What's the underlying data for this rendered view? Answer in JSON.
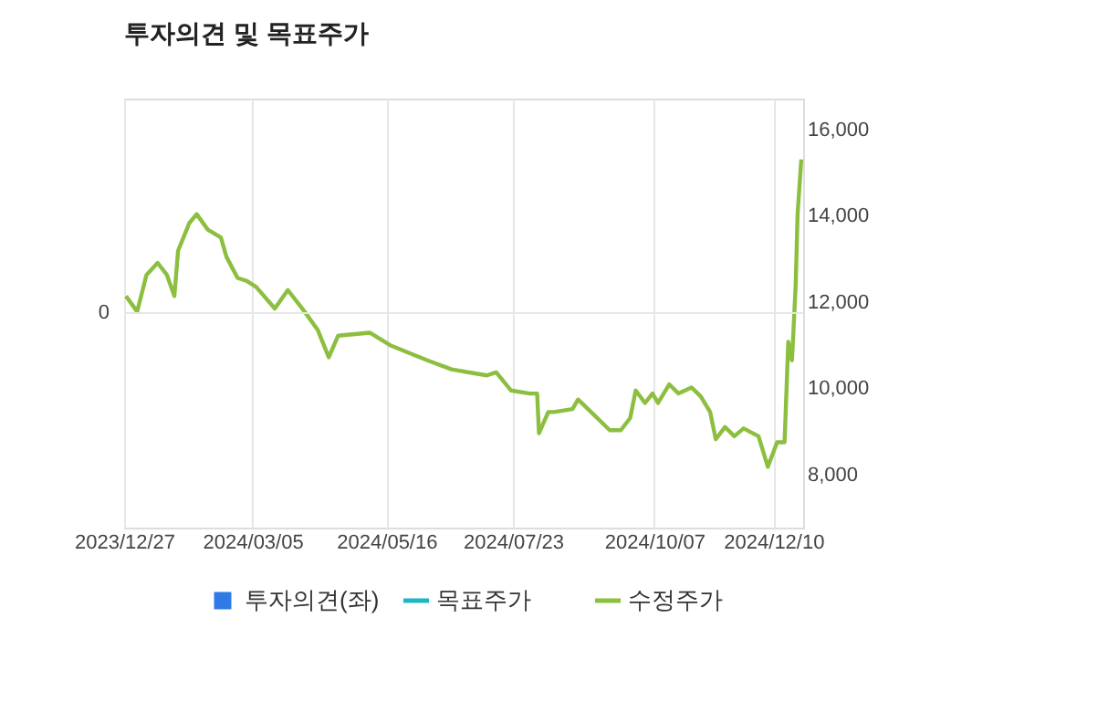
{
  "chart_data": {
    "type": "line",
    "title": "투자의견 및 목표주가",
    "xlim": [
      "2023-12-27",
      "2024-12-26"
    ],
    "xticks": [
      {
        "value": "2023-12-27",
        "label": "2023/12/27"
      },
      {
        "value": "2024-03-05",
        "label": "2024/03/05"
      },
      {
        "value": "2024-05-16",
        "label": "2024/05/16"
      },
      {
        "value": "2024-07-23",
        "label": "2024/07/23"
      },
      {
        "value": "2024-10-07",
        "label": "2024/10/07"
      },
      {
        "value": "2024-12-10",
        "label": "2024/12/10"
      }
    ],
    "y2lim": [
      6770,
      16720
    ],
    "y2ticks": [
      {
        "value": 8000,
        "label": "8,000"
      },
      {
        "value": 10000,
        "label": "10,000"
      },
      {
        "value": 12000,
        "label": "12,000"
      },
      {
        "value": 14000,
        "label": "14,000"
      },
      {
        "value": 16000,
        "label": "16,000"
      }
    ],
    "annotations": [
      "0"
    ],
    "grid": "x",
    "legend": "bottom",
    "line_style": "solid",
    "series": [
      {
        "name": "투자의견(좌)",
        "type": "bar",
        "color": "#2f7ae5"
      },
      {
        "name": "목표주가",
        "color": "#1fb5c9"
      },
      {
        "name": "수정주가",
        "color": "#8cbf3f",
        "axis": "y2",
        "x": [
          "2023-12-28",
          "2024-01-03",
          "2024-01-08",
          "2024-01-14",
          "2024-01-19",
          "2024-01-23",
          "2024-01-25",
          "2024-01-31",
          "2024-02-04",
          "2024-02-10",
          "2024-02-17",
          "2024-02-20",
          "2024-02-26",
          "2024-03-02",
          "2024-03-07",
          "2024-03-17",
          "2024-03-24",
          "2024-04-02",
          "2024-04-09",
          "2024-04-15",
          "2024-04-20",
          "2024-05-07",
          "2024-05-18",
          "2024-06-07",
          "2024-06-20",
          "2024-07-09",
          "2024-07-14",
          "2024-07-22",
          "2024-08-01",
          "2024-08-05",
          "2024-08-06",
          "2024-08-11",
          "2024-08-14",
          "2024-08-24",
          "2024-08-27",
          "2024-09-03",
          "2024-09-13",
          "2024-09-19",
          "2024-09-24",
          "2024-09-27",
          "2024-10-02",
          "2024-10-06",
          "2024-10-09",
          "2024-10-15",
          "2024-10-20",
          "2024-10-27",
          "2024-11-01",
          "2024-11-06",
          "2024-11-09",
          "2024-11-14",
          "2024-11-19",
          "2024-11-24",
          "2024-12-02",
          "2024-12-07",
          "2024-12-12",
          "2024-12-16",
          "2024-12-18",
          "2024-12-20",
          "2024-12-22",
          "2024-12-23",
          "2024-12-25"
        ],
        "values": [
          12140,
          11780,
          12630,
          12910,
          12630,
          12140,
          13190,
          13830,
          14040,
          13680,
          13500,
          13050,
          12560,
          12490,
          12350,
          11850,
          12280,
          11780,
          11360,
          10720,
          11220,
          11290,
          11000,
          10650,
          10440,
          10300,
          10370,
          9950,
          9880,
          9880,
          8960,
          9450,
          9450,
          9520,
          9740,
          9450,
          9030,
          9030,
          9310,
          9950,
          9660,
          9880,
          9660,
          10090,
          9880,
          10020,
          9810,
          9450,
          8820,
          9100,
          8890,
          9070,
          8890,
          8180,
          8750,
          8750,
          11080,
          10650,
          12410,
          14040,
          15310
        ]
      }
    ]
  }
}
